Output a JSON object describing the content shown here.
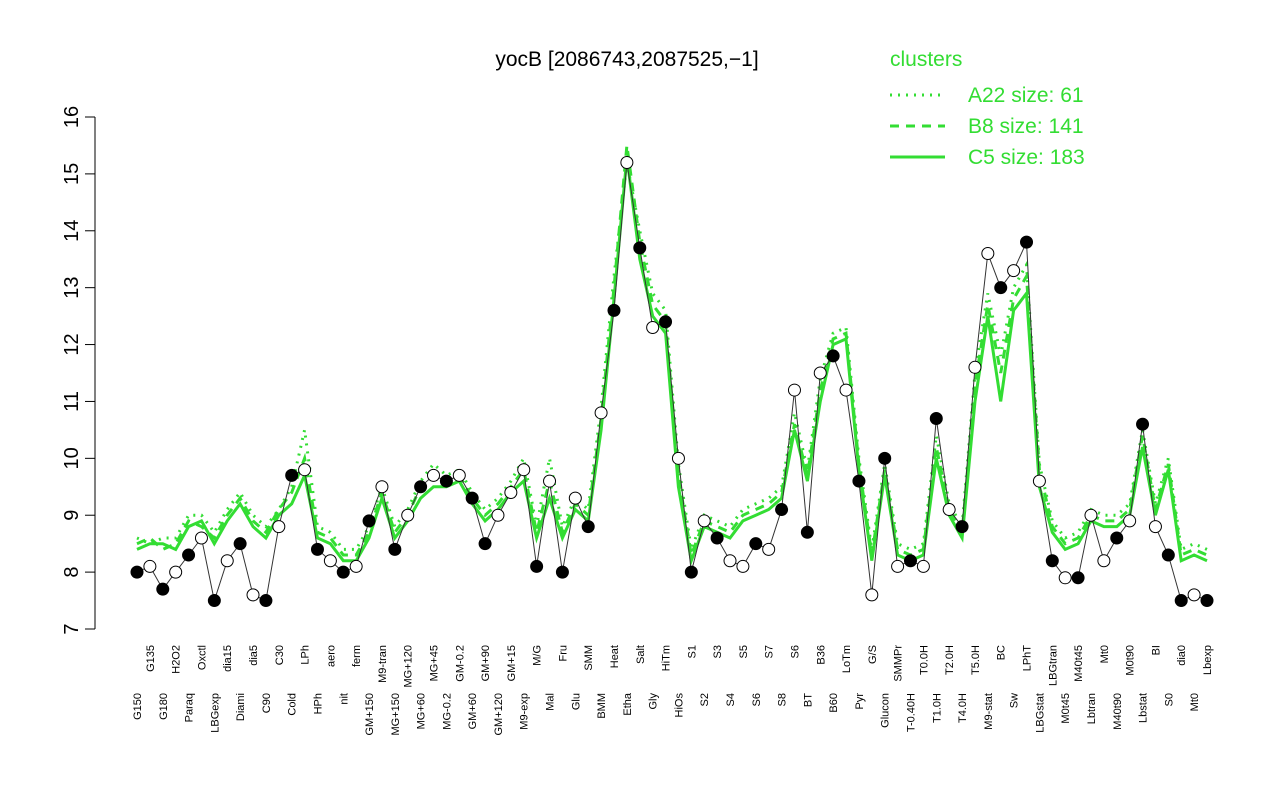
{
  "chart_data": {
    "type": "line",
    "title": "yocB [2086743,2087525,−1]",
    "legend_title": "clusters",
    "legend_position": "top-right",
    "ylim": [
      7,
      16
    ],
    "yticks": [
      7,
      8,
      9,
      10,
      11,
      12,
      13,
      14,
      15,
      16
    ],
    "categories": [
      "G150",
      "G135",
      "G180",
      "H2O2",
      "Paraq",
      "Oxctl",
      "LBGexp",
      "dia15",
      "Diami",
      "dia5",
      "C90",
      "C30",
      "Cold",
      "LPh",
      "HPh",
      "aero",
      "nit",
      "ferm",
      "GM+150",
      "M9-tran",
      "MG+150",
      "MG+120",
      "MG+60",
      "MG+45",
      "MG-0.2",
      "GM-0.2",
      "GM+60",
      "GM+90",
      "GM+120",
      "GM+15",
      "M9-exp",
      "M/G",
      "Mal",
      "Fru",
      "Glu",
      "SMM",
      "BMM",
      "Heat",
      "Etha",
      "Salt",
      "Gly",
      "HiTm",
      "HiOs",
      "S1",
      "S2",
      "S3",
      "S4",
      "S5",
      "S6",
      "S7",
      "S8",
      "S6",
      "BT",
      "B36",
      "B60",
      "LoTm",
      "Pyr",
      "G/S",
      "Glucon",
      "SMMPr",
      "T-0.40H",
      "T0.0H",
      "T1.0H",
      "T2.0H",
      "T4.0H",
      "T5.0H",
      "M9-stat",
      "BC",
      "Sw",
      "LPhT",
      "LBGstat",
      "LBGtran",
      "M0t45",
      "M40t45",
      "Lbtran",
      "Mt0",
      "M40t90",
      "M0t90",
      "Lbstat",
      "BI",
      "S0",
      "dia0",
      "Mt0",
      "Lbexp"
    ],
    "values": [
      8.0,
      8.1,
      7.7,
      8.0,
      8.3,
      8.6,
      7.5,
      8.2,
      8.5,
      7.6,
      7.5,
      8.8,
      9.7,
      9.8,
      8.4,
      8.2,
      8.0,
      8.1,
      8.9,
      9.5,
      8.4,
      9.0,
      9.5,
      9.7,
      9.6,
      9.7,
      9.3,
      8.5,
      9.0,
      9.4,
      9.8,
      8.1,
      9.6,
      8.0,
      9.3,
      8.8,
      10.8,
      12.6,
      15.2,
      13.7,
      12.3,
      12.4,
      10.0,
      8.0,
      8.9,
      8.6,
      8.2,
      8.1,
      8.5,
      8.4,
      9.1,
      11.2,
      8.7,
      11.5,
      11.8,
      11.2,
      9.6,
      7.6,
      10.0,
      8.1,
      8.2,
      8.1,
      10.7,
      9.1,
      8.8,
      11.6,
      13.6,
      13.0,
      13.3,
      13.8,
      9.6,
      8.2,
      7.9,
      7.9,
      9.0,
      8.2,
      8.6,
      8.9,
      10.6,
      8.8,
      8.3,
      7.5,
      7.6,
      7.5
    ],
    "point_fills": [
      "black",
      "white",
      "black",
      "white",
      "black",
      "white",
      "black",
      "white",
      "black",
      "white",
      "black",
      "white",
      "black",
      "white",
      "black",
      "white",
      "black",
      "white",
      "black",
      "white",
      "black",
      "white",
      "black",
      "white",
      "black",
      "white",
      "black",
      "black",
      "white",
      "white",
      "white",
      "black",
      "white",
      "black",
      "white",
      "black",
      "white",
      "black",
      "white",
      "black",
      "white",
      "black",
      "white",
      "black",
      "white",
      "black",
      "white",
      "white",
      "black",
      "white",
      "black",
      "white",
      "black",
      "white",
      "black",
      "white",
      "black",
      "white",
      "black",
      "white",
      "black",
      "white",
      "black",
      "white",
      "black",
      "white",
      "white",
      "black",
      "white",
      "black",
      "white",
      "black",
      "white",
      "black",
      "white",
      "white",
      "black",
      "white",
      "black",
      "white",
      "black",
      "black",
      "white",
      "black"
    ],
    "point_line_color": "#333333",
    "series": [
      {
        "name": "A22 size: 61",
        "color": "#33dd33",
        "dash": "dotted",
        "values": [
          8.6,
          8.5,
          8.6,
          8.6,
          9.0,
          9.0,
          8.7,
          9.1,
          9.4,
          9.0,
          8.8,
          9.1,
          9.5,
          10.5,
          8.8,
          8.7,
          8.4,
          8.4,
          8.8,
          9.5,
          8.8,
          9.1,
          9.6,
          9.9,
          9.7,
          9.8,
          9.4,
          9.1,
          9.3,
          9.6,
          10.0,
          8.8,
          10.0,
          8.8,
          9.3,
          9.1,
          10.9,
          13.2,
          15.2,
          14.0,
          12.9,
          12.6,
          9.9,
          8.4,
          9.0,
          8.9,
          8.8,
          9.1,
          9.2,
          9.3,
          9.5,
          10.8,
          9.8,
          11.4,
          12.2,
          12.3,
          10.0,
          8.4,
          9.9,
          8.5,
          8.4,
          8.5,
          10.4,
          9.2,
          8.8,
          11.5,
          12.9,
          11.8,
          13.0,
          13.4,
          9.9,
          8.9,
          8.6,
          8.7,
          9.1,
          9.0,
          9.0,
          9.2,
          10.5,
          9.2,
          10.0,
          8.4,
          8.5,
          8.4
        ]
      },
      {
        "name": "B8 size: 141",
        "color": "#33dd33",
        "dash": "dashed",
        "values": [
          8.5,
          8.6,
          8.4,
          8.5,
          8.9,
          8.8,
          8.6,
          9.0,
          9.3,
          8.9,
          8.7,
          9.1,
          9.4,
          10.0,
          8.7,
          8.6,
          8.3,
          8.3,
          8.7,
          9.4,
          8.7,
          9.0,
          9.5,
          9.7,
          9.6,
          9.7,
          9.3,
          9.0,
          9.2,
          9.5,
          9.8,
          8.7,
          9.6,
          8.7,
          9.2,
          9.0,
          10.7,
          13.0,
          15.5,
          13.8,
          12.7,
          12.4,
          9.7,
          8.3,
          8.9,
          8.8,
          8.7,
          9.0,
          9.1,
          9.2,
          9.4,
          10.6,
          9.7,
          11.2,
          12.1,
          12.2,
          9.9,
          8.3,
          9.8,
          8.4,
          8.3,
          8.4,
          10.2,
          9.1,
          8.7,
          11.3,
          12.7,
          11.5,
          12.8,
          13.2,
          9.8,
          8.8,
          8.5,
          8.6,
          9.0,
          8.9,
          8.9,
          9.1,
          10.4,
          9.1,
          9.9,
          8.3,
          8.4,
          8.3
        ]
      },
      {
        "name": "C5 size: 183",
        "color": "#33dd33",
        "dash": "solid",
        "values": [
          8.4,
          8.5,
          8.5,
          8.4,
          8.8,
          8.9,
          8.5,
          8.9,
          9.2,
          8.8,
          8.6,
          9.0,
          9.2,
          9.7,
          8.6,
          8.5,
          8.2,
          8.2,
          8.6,
          9.3,
          8.6,
          8.9,
          9.3,
          9.5,
          9.5,
          9.6,
          9.2,
          8.9,
          9.1,
          9.4,
          9.6,
          8.6,
          9.3,
          8.6,
          9.1,
          8.9,
          10.5,
          12.8,
          15.3,
          13.5,
          12.5,
          12.2,
          9.5,
          8.2,
          8.8,
          8.7,
          8.6,
          8.9,
          9.0,
          9.1,
          9.3,
          10.5,
          9.6,
          11.0,
          12.0,
          12.1,
          9.8,
          8.2,
          9.7,
          8.3,
          8.2,
          8.3,
          10.0,
          9.0,
          8.6,
          11.0,
          12.5,
          11.0,
          12.6,
          12.9,
          9.5,
          8.7,
          8.4,
          8.5,
          8.9,
          8.8,
          8.8,
          9.0,
          10.2,
          9.0,
          9.8,
          8.2,
          8.3,
          8.2
        ]
      }
    ]
  }
}
